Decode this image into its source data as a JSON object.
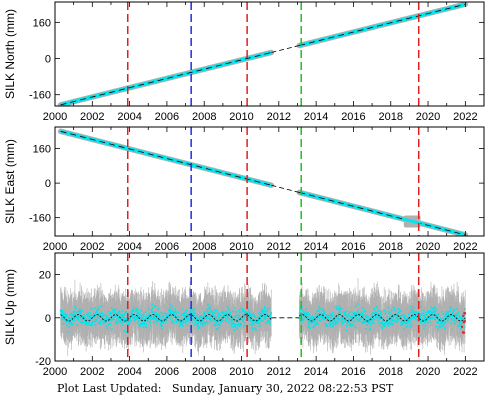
{
  "footer": {
    "prefix": "Plot Last Updated:",
    "timestamp": "Sunday, January 30, 2022 08:22:53 PST"
  },
  "colors": {
    "data_points": "#00e5ee",
    "error_bars": "#b0b0b0",
    "model_line": "#000000",
    "vline_red": "#e02020",
    "vline_blue": "#2030e0",
    "vline_green": "#20c020",
    "outlier": "#e02020"
  },
  "chart_data": [
    {
      "type": "scatter",
      "ylabel": "SILK North (mm)",
      "xlim": [
        2000,
        2023
      ],
      "ylim": [
        -210,
        250
      ],
      "xticks": [
        2000,
        2002,
        2004,
        2006,
        2008,
        2010,
        2012,
        2014,
        2016,
        2018,
        2020,
        2022
      ],
      "yticks": [
        -160,
        0,
        160
      ],
      "trend": {
        "start": [
          2000.3,
          -205
        ],
        "end": [
          2022.0,
          240
        ]
      },
      "segments": [
        [
          2000.3,
          2011.6
        ],
        [
          2013.1,
          2022.0
        ]
      ],
      "gap_dashed": [
        2011.6,
        2013.1
      ],
      "vlines": [
        {
          "x": 2003.9,
          "color": "red"
        },
        {
          "x": 2007.3,
          "color": "blue"
        },
        {
          "x": 2010.3,
          "color": "red"
        },
        {
          "x": 2013.2,
          "color": "green"
        },
        {
          "x": 2019.5,
          "color": "red"
        }
      ]
    },
    {
      "type": "scatter",
      "ylabel": "SILK East (mm)",
      "xlim": [
        2000,
        2023
      ],
      "ylim": [
        -245,
        260
      ],
      "xticks": [
        2000,
        2002,
        2004,
        2006,
        2008,
        2010,
        2012,
        2014,
        2016,
        2018,
        2020,
        2022
      ],
      "yticks": [
        -160,
        0,
        160
      ],
      "trend": {
        "start": [
          2000.3,
          240
        ],
        "end": [
          2022.0,
          -240
        ]
      },
      "segments": [
        [
          2000.3,
          2011.6
        ],
        [
          2013.1,
          2022.0
        ]
      ],
      "gap_dashed": [
        2011.6,
        2013.1
      ],
      "vlines": [
        {
          "x": 2003.9,
          "color": "red"
        },
        {
          "x": 2007.3,
          "color": "blue"
        },
        {
          "x": 2010.3,
          "color": "red"
        },
        {
          "x": 2013.2,
          "color": "green"
        },
        {
          "x": 2019.5,
          "color": "red"
        }
      ]
    },
    {
      "type": "scatter",
      "ylabel": "SILK Up (mm)",
      "xlim": [
        2000,
        2023
      ],
      "ylim": [
        -20,
        30
      ],
      "xticks": [
        2000,
        2002,
        2004,
        2006,
        2008,
        2010,
        2012,
        2014,
        2016,
        2018,
        2020,
        2022
      ],
      "yticks": [
        -20,
        0,
        20
      ],
      "trend": {
        "start": [
          2000.3,
          0
        ],
        "end": [
          2022.0,
          0
        ]
      },
      "seasonal_amplitude_mm": 1.5,
      "scatter_sd_mm": 4,
      "error_bar_mm": 9,
      "segments": [
        [
          2000.3,
          2011.6
        ],
        [
          2013.1,
          2022.0
        ]
      ],
      "gap_dashed": [
        2011.6,
        2013.1
      ],
      "vlines": [
        {
          "x": 2003.9,
          "color": "red"
        },
        {
          "x": 2007.3,
          "color": "blue"
        },
        {
          "x": 2010.3,
          "color": "red"
        },
        {
          "x": 2013.2,
          "color": "green"
        },
        {
          "x": 2019.5,
          "color": "red"
        }
      ]
    }
  ]
}
